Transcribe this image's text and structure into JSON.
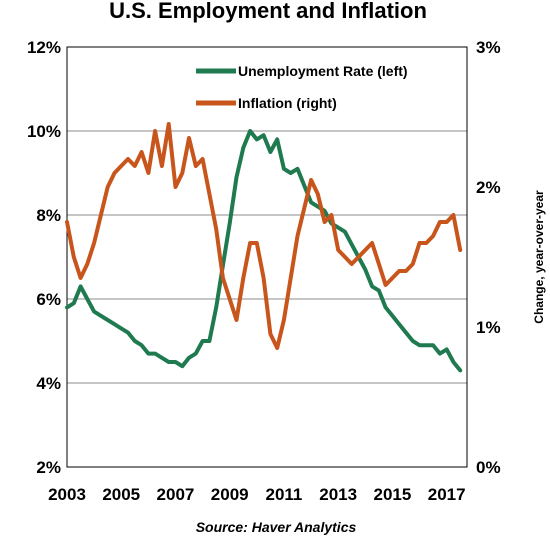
{
  "chart_data": {
    "type": "line",
    "title": "U.S. Employment and Inflation",
    "source": "Source: Haver Analytics",
    "x_ticks": [
      "2003",
      "2005",
      "2007",
      "2009",
      "2011",
      "2013",
      "2015",
      "2017"
    ],
    "xlim": [
      2003.0,
      2017.75
    ],
    "y_left": {
      "ticks": [
        "2%",
        "4%",
        "6%",
        "8%",
        "10%",
        "12%"
      ],
      "ylim": [
        2,
        12
      ]
    },
    "y_right": {
      "label": "Change, year-over-year",
      "ticks": [
        "0%",
        "1%",
        "2%",
        "3%"
      ],
      "ylim": [
        0,
        3
      ]
    },
    "grid": true,
    "legend_position": "top-right inside plot",
    "series": [
      {
        "name": "Unemployment Rate (left)",
        "axis": "left",
        "color": "#1f7a4f",
        "x": [
          2003.0,
          2003.25,
          2003.5,
          2003.75,
          2004.0,
          2004.25,
          2004.5,
          2004.75,
          2005.0,
          2005.25,
          2005.5,
          2005.75,
          2006.0,
          2006.25,
          2006.5,
          2006.75,
          2007.0,
          2007.25,
          2007.5,
          2007.75,
          2008.0,
          2008.25,
          2008.5,
          2008.75,
          2009.0,
          2009.25,
          2009.5,
          2009.75,
          2010.0,
          2010.25,
          2010.5,
          2010.75,
          2011.0,
          2011.25,
          2011.5,
          2011.75,
          2012.0,
          2012.25,
          2012.5,
          2012.75,
          2013.0,
          2013.25,
          2013.5,
          2013.75,
          2014.0,
          2014.25,
          2014.5,
          2014.75,
          2015.0,
          2015.25,
          2015.5,
          2015.75,
          2016.0,
          2016.25,
          2016.5,
          2016.75,
          2017.0,
          2017.25,
          2017.5
        ],
        "values": [
          5.8,
          5.9,
          6.3,
          6.0,
          5.7,
          5.6,
          5.5,
          5.4,
          5.3,
          5.2,
          5.0,
          4.9,
          4.7,
          4.7,
          4.6,
          4.5,
          4.5,
          4.4,
          4.6,
          4.7,
          5.0,
          5.0,
          5.8,
          6.8,
          7.8,
          8.9,
          9.6,
          10.0,
          9.8,
          9.9,
          9.5,
          9.8,
          9.1,
          9.0,
          9.1,
          8.7,
          8.3,
          8.2,
          8.1,
          7.8,
          7.7,
          7.6,
          7.3,
          7.0,
          6.7,
          6.3,
          6.2,
          5.8,
          5.6,
          5.4,
          5.2,
          5.0,
          4.9,
          4.9,
          4.9,
          4.7,
          4.8,
          4.5,
          4.3
        ]
      },
      {
        "name": "Inflation (right)",
        "axis": "right",
        "color": "#c8561c",
        "x": [
          2003.0,
          2003.25,
          2003.5,
          2003.75,
          2004.0,
          2004.25,
          2004.5,
          2004.75,
          2005.0,
          2005.25,
          2005.5,
          2005.75,
          2006.0,
          2006.25,
          2006.5,
          2006.75,
          2007.0,
          2007.25,
          2007.5,
          2007.75,
          2008.0,
          2008.25,
          2008.5,
          2008.75,
          2009.0,
          2009.25,
          2009.5,
          2009.75,
          2010.0,
          2010.25,
          2010.5,
          2010.75,
          2011.0,
          2011.25,
          2011.5,
          2011.75,
          2012.0,
          2012.25,
          2012.5,
          2012.75,
          2013.0,
          2013.25,
          2013.5,
          2013.75,
          2014.0,
          2014.25,
          2014.5,
          2014.75,
          2015.0,
          2015.25,
          2015.5,
          2015.75,
          2016.0,
          2016.25,
          2016.5,
          2016.75,
          2017.0,
          2017.25,
          2017.5
        ],
        "values": [
          1.75,
          1.5,
          1.35,
          1.45,
          1.6,
          1.8,
          2.0,
          2.1,
          2.15,
          2.2,
          2.15,
          2.25,
          2.1,
          2.4,
          2.15,
          2.45,
          2.0,
          2.1,
          2.35,
          2.15,
          2.2,
          1.95,
          1.7,
          1.35,
          1.2,
          1.05,
          1.35,
          1.6,
          1.6,
          1.35,
          0.95,
          0.85,
          1.05,
          1.35,
          1.65,
          1.85,
          2.05,
          1.95,
          1.75,
          1.8,
          1.55,
          1.5,
          1.45,
          1.5,
          1.55,
          1.6,
          1.45,
          1.3,
          1.35,
          1.4,
          1.4,
          1.45,
          1.6,
          1.6,
          1.65,
          1.75,
          1.75,
          1.8,
          1.55
        ]
      }
    ]
  }
}
